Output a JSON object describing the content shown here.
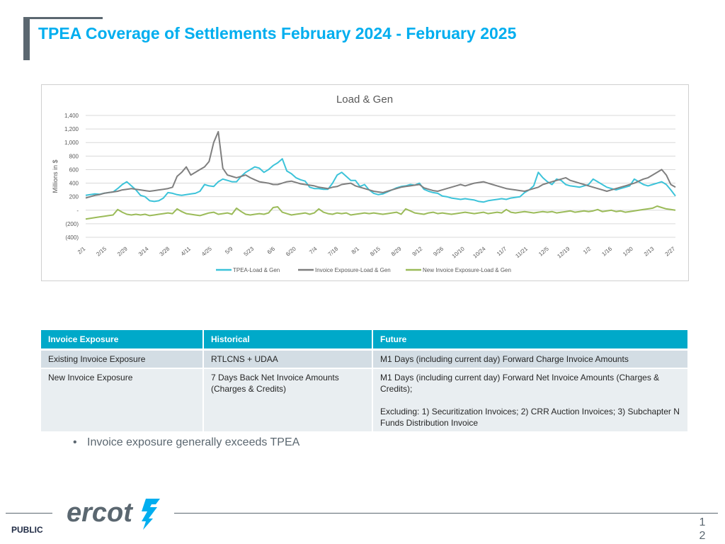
{
  "slide": {
    "title": "TPEA Coverage of Settlements February 2024 - February 2025",
    "bullet": "Invoice exposure generally exceeds TPEA",
    "footer_label": "PUBLIC",
    "logo_text": "ercot",
    "page_number_1": "1",
    "page_number_2": "2"
  },
  "colors": {
    "accent": "#00aeef",
    "table_header": "#00a9c9",
    "tpea": "#3cc3d9",
    "invoice": "#7f7f7f",
    "new_invoice": "#9bbb59"
  },
  "chart_data": {
    "type": "line",
    "title": "Load & Gen",
    "ylabel": "Millions in $",
    "ylim": [
      -400,
      1400
    ],
    "yticks": [
      1400,
      1200,
      1000,
      800,
      600,
      400,
      200,
      0,
      -200,
      -400
    ],
    "ytick_labels": [
      "1,400",
      "1,200",
      "1,000",
      "800",
      "600",
      "400",
      "200",
      "-",
      "(200)",
      "(400)"
    ],
    "x_tick_labels": [
      "2/1",
      "2/15",
      "2/29",
      "3/14",
      "3/28",
      "4/11",
      "4/25",
      "5/9",
      "5/23",
      "6/6",
      "6/20",
      "7/4",
      "7/18",
      "8/1",
      "8/15",
      "8/29",
      "9/12",
      "9/26",
      "10/10",
      "10/24",
      "11/7",
      "11/21",
      "12/5",
      "12/19",
      "1/2",
      "1/16",
      "1/30",
      "2/13",
      "2/27"
    ],
    "x_note": "values sampled every 2 days from 2/1 to 2/27",
    "series": [
      {
        "name": "TPEA-Load & Gen",
        "values": [
          220,
          230,
          240,
          235,
          250,
          260,
          270,
          320,
          380,
          420,
          360,
          300,
          220,
          200,
          140,
          130,
          140,
          180,
          260,
          250,
          230,
          220,
          230,
          240,
          250,
          280,
          380,
          360,
          350,
          420,
          460,
          440,
          420,
          420,
          500,
          560,
          600,
          640,
          620,
          560,
          600,
          660,
          700,
          760,
          580,
          540,
          480,
          450,
          430,
          340,
          320,
          320,
          310,
          310,
          400,
          520,
          560,
          500,
          440,
          440,
          350,
          380,
          300,
          250,
          230,
          240,
          270,
          300,
          330,
          350,
          360,
          380,
          370,
          400,
          310,
          280,
          260,
          250,
          210,
          200,
          180,
          170,
          160,
          170,
          160,
          150,
          130,
          120,
          140,
          150,
          160,
          170,
          160,
          180,
          190,
          200,
          260,
          300,
          360,
          560,
          480,
          420,
          380,
          460,
          440,
          380,
          360,
          350,
          340,
          360,
          380,
          460,
          420,
          380,
          340,
          320,
          300,
          320,
          340,
          360,
          460,
          420,
          380,
          360,
          380,
          400,
          420,
          380,
          300,
          210
        ],
        "color": "#3cc3d9"
      },
      {
        "name": "Invoice Exposure-Load & Gen",
        "values": [
          180,
          200,
          220,
          230,
          250,
          260,
          270,
          280,
          300,
          310,
          320,
          310,
          300,
          290,
          280,
          290,
          300,
          310,
          320,
          340,
          500,
          560,
          640,
          520,
          560,
          600,
          640,
          720,
          1000,
          1160,
          620,
          520,
          500,
          480,
          500,
          520,
          480,
          450,
          420,
          410,
          400,
          380,
          380,
          400,
          420,
          430,
          410,
          390,
          380,
          370,
          360,
          340,
          330,
          320,
          340,
          350,
          380,
          390,
          400,
          360,
          340,
          320,
          300,
          280,
          270,
          260,
          280,
          300,
          320,
          340,
          350,
          360,
          370,
          380,
          330,
          310,
          290,
          280,
          300,
          320,
          340,
          360,
          380,
          360,
          380,
          400,
          410,
          420,
          400,
          380,
          360,
          340,
          320,
          310,
          300,
          290,
          280,
          300,
          320,
          340,
          380,
          400,
          420,
          440,
          460,
          480,
          440,
          420,
          400,
          380,
          360,
          340,
          320,
          300,
          280,
          300,
          320,
          340,
          360,
          380,
          400,
          430,
          460,
          480,
          520,
          560,
          600,
          520,
          380,
          340
        ],
        "color": "#7f7f7f"
      },
      {
        "name": "New Invoice Exposure-Load & Gen",
        "values": [
          -130,
          -120,
          -110,
          -100,
          -90,
          -80,
          -70,
          10,
          -30,
          -60,
          -70,
          -60,
          -70,
          -60,
          -80,
          -70,
          -60,
          -50,
          -40,
          -50,
          20,
          -20,
          -50,
          -60,
          -70,
          -80,
          -60,
          -40,
          -30,
          -60,
          -50,
          -40,
          -60,
          30,
          -20,
          -60,
          -70,
          -60,
          -50,
          -60,
          -40,
          40,
          50,
          -30,
          -50,
          -70,
          -60,
          -50,
          -40,
          -60,
          -40,
          20,
          -30,
          -50,
          -60,
          -40,
          -50,
          -40,
          -70,
          -60,
          -50,
          -40,
          -50,
          -40,
          -50,
          -60,
          -50,
          -40,
          -30,
          -60,
          20,
          -10,
          -40,
          -50,
          -60,
          -40,
          -30,
          -50,
          -40,
          -50,
          -60,
          -50,
          -40,
          -30,
          -40,
          -50,
          -40,
          -30,
          -50,
          -40,
          -30,
          -40,
          10,
          -30,
          -40,
          -30,
          -20,
          -30,
          -40,
          -30,
          -20,
          -30,
          -20,
          -40,
          -30,
          -20,
          -10,
          -30,
          -20,
          -10,
          -20,
          -10,
          10,
          -20,
          -10,
          0,
          -20,
          -10,
          -30,
          -20,
          -10,
          0,
          10,
          20,
          30,
          60,
          40,
          20,
          10,
          0
        ],
        "color": "#9bbb59"
      }
    ],
    "legend_position": "bottom",
    "grid": true
  },
  "table": {
    "headers": [
      "Invoice Exposure",
      "Historical",
      "Future"
    ],
    "row1": [
      "Existing Invoice Exposure",
      "RTLCNS + UDAA",
      "M1 Days (including current day) Forward Charge Invoice Amounts"
    ],
    "row2": {
      "c1": "New Invoice Exposure",
      "c2": "7 Days Back Net Invoice Amounts (Charges & Credits)",
      "c3a": "M1 Days (including current day) Forward Net Invoice Amounts (Charges & Credits);",
      "c3b": "Excluding: 1) Securitization Invoices; 2) CRR Auction Invoices; 3) Subchapter N Funds Distribution Invoice"
    }
  }
}
